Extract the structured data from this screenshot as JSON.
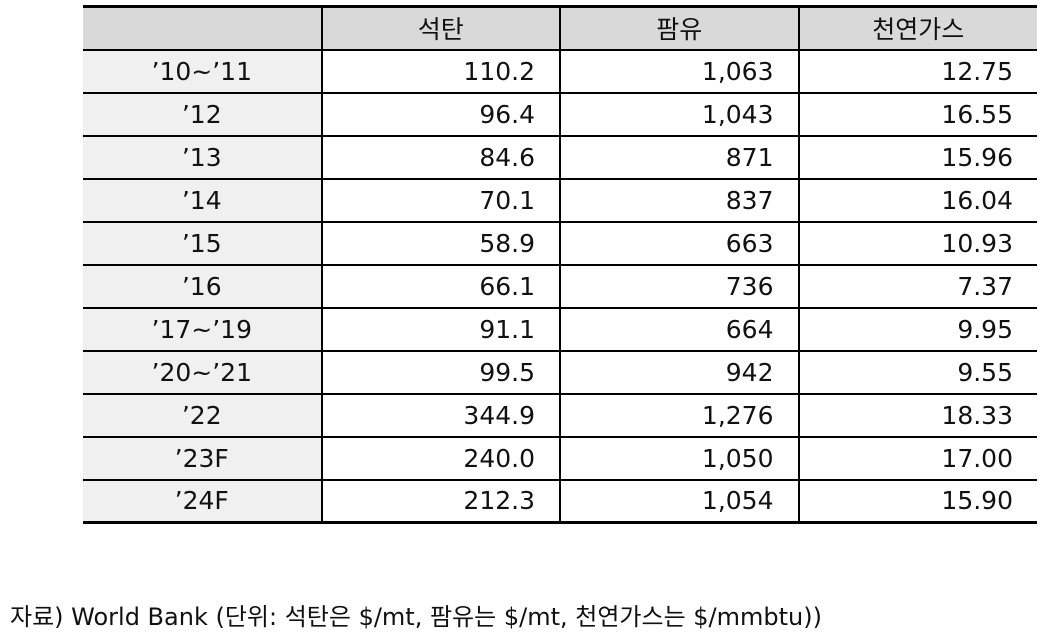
{
  "table": {
    "header": [
      "",
      "석탄",
      "팜유",
      "천연가스"
    ],
    "rows": [
      [
        "’10~’11",
        "110.2",
        "1,063",
        "12.75"
      ],
      [
        "’12",
        "96.4",
        "1,043",
        "16.55"
      ],
      [
        "’13",
        "84.6",
        "871",
        "15.96"
      ],
      [
        "’14",
        "70.1",
        "837",
        "16.04"
      ],
      [
        "’15",
        "58.9",
        "663",
        "10.93"
      ],
      [
        "’16",
        "66.1",
        "736",
        "7.37"
      ],
      [
        "’17~’19",
        "91.1",
        "664",
        "9.95"
      ],
      [
        "’20~’21",
        "99.5",
        "942",
        "9.55"
      ],
      [
        "’22",
        "344.9",
        "1,276",
        "18.33"
      ],
      [
        "’23F",
        "240.0",
        "1,050",
        "17.00"
      ],
      [
        "’24F",
        "212.3",
        "1,054",
        "15.90"
      ]
    ]
  },
  "source": "자료) World Bank (단위: 석탄은 $/mt, 팜유는 $/mt, 천연가스는 $/mmbtu))"
}
